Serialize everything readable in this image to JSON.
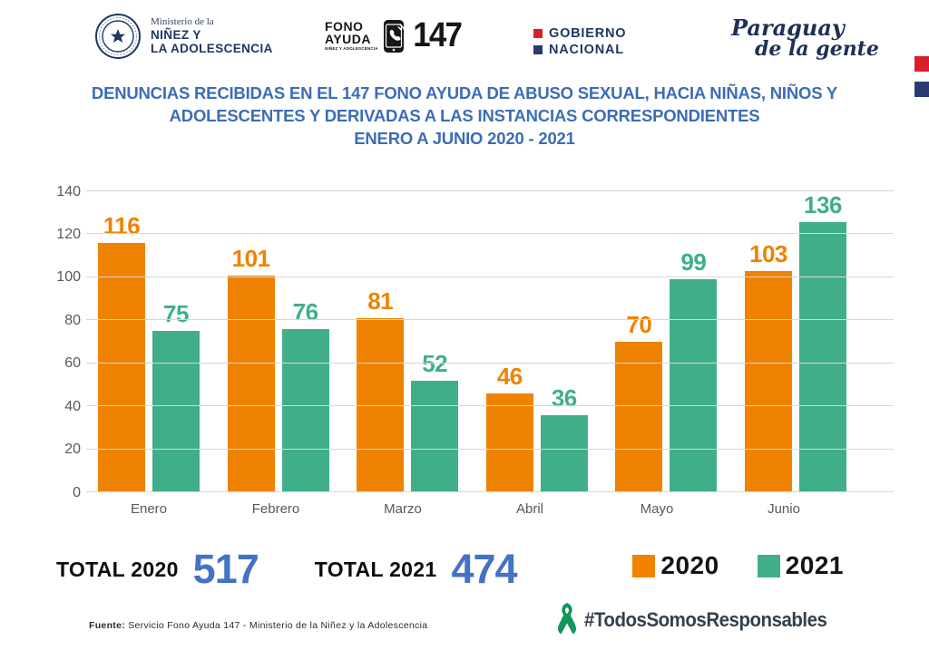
{
  "header": {
    "ministry": {
      "pre": "Ministerio de la",
      "line1": "NIÑEZ Y",
      "line2": "LA ADOLESCENCIA"
    },
    "fono": {
      "word1": "FONO",
      "word2": "AYUDA",
      "sub": "NIÑEZ Y ADOLESCENCIA",
      "number": "147"
    },
    "gobierno": {
      "line1": "GOBIERNO",
      "line2": "NACIONAL"
    },
    "paraguay": {
      "line1": "Paraguay",
      "line2": "de la gente"
    }
  },
  "title": {
    "line1": "DENUNCIAS RECIBIDAS EN EL 147 FONO AYUDA DE ABUSO SEXUAL, HACIA NIÑAS, NIÑOS Y",
    "line2": "ADOLESCENTES  Y DERIVADAS A LAS INSTANCIAS CORRESPONDIENTES",
    "line3": "ENERO A JUNIO 2020 - 2021"
  },
  "chart_data": {
    "type": "bar",
    "categories": [
      "Enero",
      "Febrero",
      "Marzo",
      "Abril",
      "Mayo",
      "Junio"
    ],
    "series": [
      {
        "name": "2020",
        "color": "#EF8200",
        "values": [
          116,
          101,
          81,
          46,
          70,
          103
        ]
      },
      {
        "name": "2021",
        "color": "#41AE8A",
        "values": [
          75,
          76,
          52,
          36,
          99,
          136
        ]
      }
    ],
    "ylim": [
      0,
      140
    ],
    "yticks": [
      0,
      20,
      40,
      60,
      80,
      100,
      120,
      140
    ],
    "grid": true,
    "legend_position": "bottom-right",
    "bar_value_labels": true
  },
  "totals": [
    {
      "label": "TOTAL 2020",
      "value": "517"
    },
    {
      "label": "TOTAL 2021",
      "value": "474"
    }
  ],
  "legend": [
    {
      "label": "2020",
      "color": "#EF8200"
    },
    {
      "label": "2021",
      "color": "#41AE8A"
    }
  ],
  "footer": {
    "source_label": "Fuente:",
    "source_text": " Servicio Fono Ayuda 147 - Ministerio de la Niñez y la Adolescencia",
    "hashtag": "#TodosSomosResponsables"
  },
  "colors": {
    "title_blue": "#3c6db6",
    "total_value_blue": "#4472c4",
    "bar_2020_orange": "#EF8200",
    "bar_2021_green": "#41AE8A",
    "gov_red": "#d91e2e",
    "gov_navy": "#2c3a72",
    "ribbon_green": "#13955b",
    "hashtag_navy": "#33414d",
    "axis_gray": "#595959"
  }
}
